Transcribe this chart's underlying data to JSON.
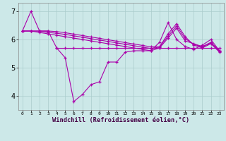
{
  "x": [
    0,
    1,
    2,
    3,
    4,
    5,
    6,
    7,
    8,
    9,
    10,
    11,
    12,
    13,
    14,
    15,
    16,
    17,
    18,
    19,
    20,
    21,
    22,
    23
  ],
  "line_main": [
    6.3,
    7.0,
    6.3,
    6.3,
    5.7,
    5.35,
    3.8,
    4.05,
    4.4,
    4.5,
    5.2,
    5.2,
    5.55,
    5.6,
    5.6,
    5.6,
    5.9,
    6.6,
    6.0,
    5.75,
    5.65,
    5.8,
    6.0,
    5.6
  ],
  "line_flat": [
    null,
    null,
    null,
    null,
    5.7,
    5.7,
    5.7,
    5.7,
    5.7,
    5.7,
    5.7,
    5.7,
    5.7,
    5.7,
    5.7,
    5.7,
    5.7,
    5.7,
    5.7,
    5.7,
    5.7,
    5.7,
    5.7,
    5.7
  ],
  "line_top1": [
    6.3,
    6.3,
    6.25,
    6.2,
    6.15,
    6.1,
    6.05,
    6.0,
    5.95,
    5.9,
    5.85,
    5.8,
    5.75,
    5.7,
    5.65,
    5.6,
    5.7,
    6.05,
    6.4,
    5.95,
    5.85,
    5.75,
    5.9,
    5.6
  ],
  "line_top2": [
    6.3,
    6.3,
    6.3,
    6.25,
    6.22,
    6.18,
    6.13,
    6.08,
    6.03,
    5.98,
    5.93,
    5.88,
    5.83,
    5.78,
    5.73,
    5.68,
    5.73,
    6.12,
    6.48,
    6.03,
    5.83,
    5.73,
    5.88,
    5.58
  ],
  "line_top3": [
    6.3,
    6.3,
    6.3,
    6.3,
    6.28,
    6.24,
    6.19,
    6.14,
    6.09,
    6.04,
    5.99,
    5.94,
    5.89,
    5.84,
    5.79,
    5.74,
    5.74,
    6.2,
    6.56,
    6.1,
    5.8,
    5.7,
    5.85,
    5.55
  ],
  "background_color": "#cce8e8",
  "grid_color": "#aacccc",
  "line_color": "#aa00aa",
  "ylim": [
    3.5,
    7.3
  ],
  "xlim": [
    -0.5,
    23.5
  ],
  "yticks": [
    4,
    5,
    6,
    7
  ],
  "xlabel": "Windchill (Refroidissement éolien,°C)"
}
